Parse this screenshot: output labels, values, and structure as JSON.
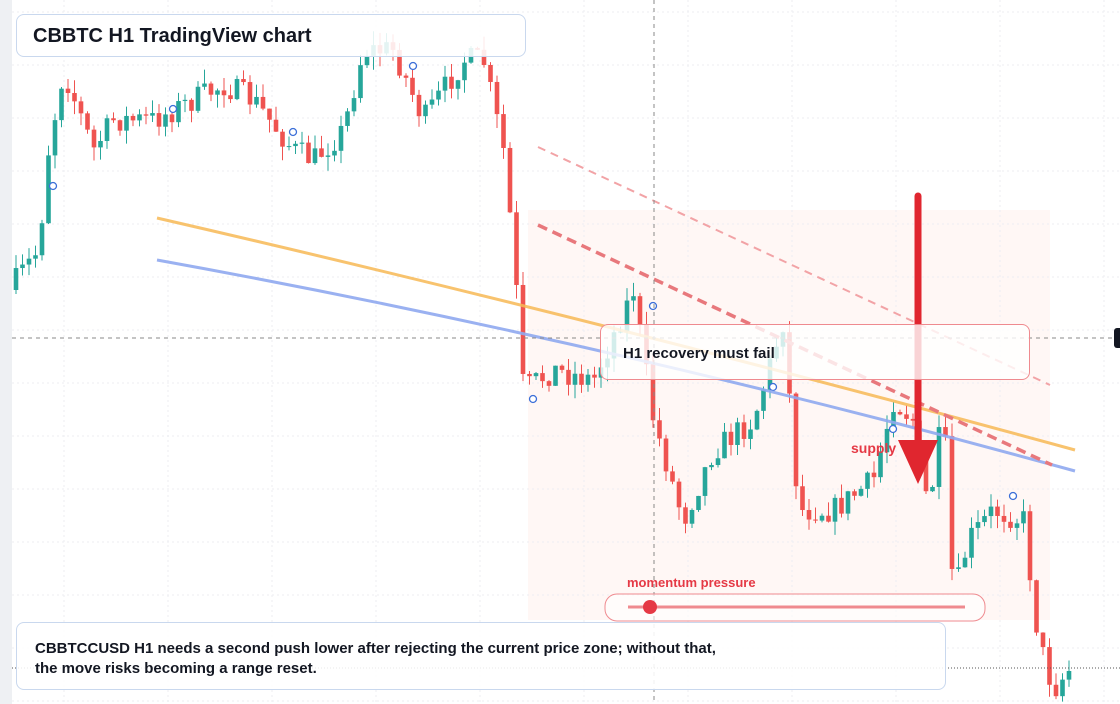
{
  "header": {
    "title": "CBBTC H1 TradingView chart"
  },
  "annotations": {
    "zone_label": "H1 recovery must fail",
    "supply_label": "supply",
    "momentum_label": "momentum pressure"
  },
  "caption": [
    "CBBTCCUSD H1 needs a second push lower after rejecting the current price zone; without that,",
    "the move risks becoming a range reset."
  ]
}
